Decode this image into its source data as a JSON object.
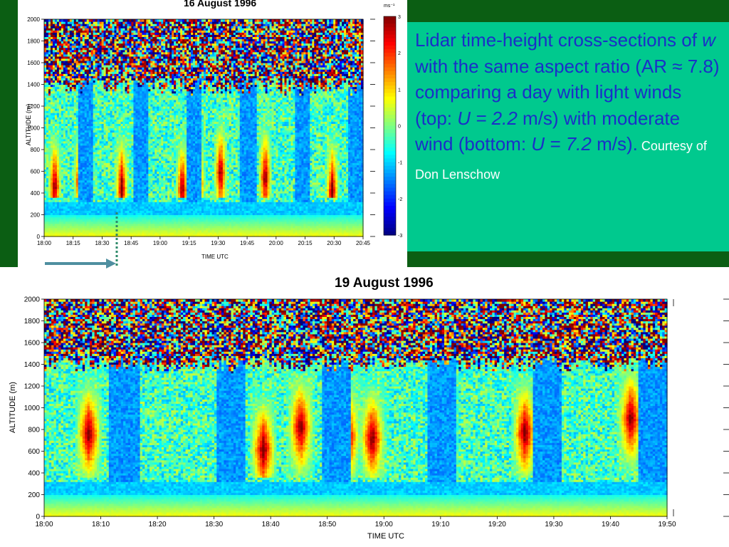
{
  "caption": {
    "line1": "Lidar time-height cross-sections of ",
    "w": "w",
    "line2": " with the same aspect ratio (AR ≈ 7.8) comparing a day with light winds (top: ",
    "u_top": "U = 2.2",
    "line3": " m/s) with moderate wind (bottom: ",
    "u_bottom": "U = 7.2",
    "line4": " m/s).",
    "credit": " Courtesy of Don Lenschow"
  },
  "colors": {
    "frame": "#0b5e13",
    "caption_bg": "#00c98e",
    "caption_text": "#1a2fc8",
    "arrow": "#4f8fa0"
  },
  "chart_data": [
    {
      "type": "heatmap",
      "title": "16 August 1996",
      "xlabel": "TIME UTC",
      "ylabel": "ALTITUDE (m)",
      "x_ticks": [
        "18:00",
        "18:15",
        "18:30",
        "18:45",
        "19:00",
        "19:15",
        "19:30",
        "19:45",
        "20:00",
        "20:15",
        "20:30",
        "20:45"
      ],
      "y_ticks": [
        "0",
        "200",
        "400",
        "600",
        "800",
        "1000",
        "1200",
        "1400",
        "1600",
        "1800",
        "2000"
      ],
      "ylim": [
        0,
        2000
      ],
      "colorbar": {
        "unit": "ms⁻¹",
        "ticks": [
          "3",
          "2",
          "1",
          "0",
          "-1",
          "-2",
          "-3"
        ],
        "range": [
          -3,
          3
        ]
      },
      "columns": [
        {
          "t": 0.03,
          "h": 340,
          "top": 1350
        },
        {
          "t": 0.11,
          "h": 380,
          "top": 1320
        },
        {
          "t": 0.24,
          "h": 330,
          "top": 1380
        },
        {
          "t": 0.3,
          "h": 300,
          "top": 1350
        },
        {
          "t": 0.43,
          "h": 320,
          "top": 1380
        },
        {
          "t": 0.48,
          "h": 360,
          "top": 1400
        },
        {
          "t": 0.55,
          "h": 470,
          "top": 1450
        },
        {
          "t": 0.69,
          "h": 420,
          "top": 1400
        },
        {
          "t": 0.9,
          "h": 300,
          "top": 1380
        }
      ],
      "dark_layer_m": 230,
      "top_layer_m": 1380
    },
    {
      "type": "heatmap",
      "title": "19 August 1996",
      "xlabel": "TIME UTC",
      "ylabel": "ALTITUDE (m)",
      "x_ticks": [
        "18:00",
        "18:10",
        "18:20",
        "18:30",
        "18:40",
        "18:50",
        "19:00",
        "19:10",
        "19:20",
        "19:30",
        "19:40",
        "19:50"
      ],
      "y_ticks": [
        "0",
        "200",
        "400",
        "600",
        "800",
        "1000",
        "1200",
        "1400",
        "1600",
        "1800",
        "2000"
      ],
      "ylim": [
        0,
        2000
      ],
      "columns": [
        {
          "t": 0.07,
          "h": 640,
          "top": 1350
        },
        {
          "t": 0.125,
          "h": 720,
          "top": 1300
        },
        {
          "t": 0.35,
          "h": 500,
          "top": 1400
        },
        {
          "t": 0.41,
          "h": 700,
          "top": 1400
        },
        {
          "t": 0.485,
          "h": 620,
          "top": 1420
        },
        {
          "t": 0.525,
          "h": 600,
          "top": 1380
        },
        {
          "t": 0.64,
          "h": 560,
          "top": 1400
        },
        {
          "t": 0.77,
          "h": 650,
          "top": 1380
        },
        {
          "t": 0.94,
          "h": 780,
          "top": 1450
        }
      ],
      "dark_layer_m": 230,
      "top_layer_m": 1400
    }
  ]
}
